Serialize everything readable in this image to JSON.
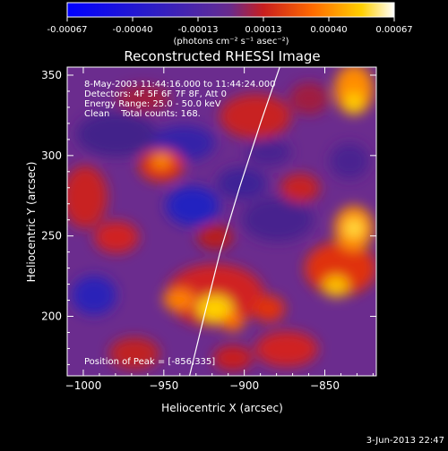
{
  "colorbar": {
    "ticks": [
      "-0.00067",
      "-0.00040",
      "-0.00013",
      "0.00013",
      "0.00040",
      "0.00067"
    ],
    "unit_label": "(photons cm⁻² s⁻¹ asec⁻²)",
    "range": [
      -0.00067,
      0.00067
    ]
  },
  "chart_data": {
    "type": "heatmap",
    "title": "Reconstructed RHESSI Image",
    "xlabel": "Heliocentric X (arcsec)",
    "ylabel": "Heliocentric Y (arcsec)",
    "xlim": [
      -1010,
      -818
    ],
    "ylim": [
      163,
      355
    ],
    "xticks": [
      -1000,
      -950,
      -900,
      -850
    ],
    "yticks": [
      200,
      250,
      300,
      350
    ],
    "annotations": [
      "8-May-2003 11:44:16.000 to 11:44:24.000",
      "Detectors: 4F 5F 6F 7F 8F, Att 0",
      "Energy Range: 25.0 - 50.0 keV",
      "Clean    Total counts: 168."
    ],
    "peak_text": "Position of Peak = [-856,335]",
    "peak": [
      -856,
      335
    ],
    "limb_points": [
      [
        -934,
        163
      ],
      [
        -925,
        200
      ],
      [
        -915,
        240
      ],
      [
        -903,
        280
      ],
      [
        -890,
        320
      ],
      [
        -878,
        355
      ]
    ]
  },
  "footer": {
    "date": "3-Jun-2013 22:47"
  }
}
